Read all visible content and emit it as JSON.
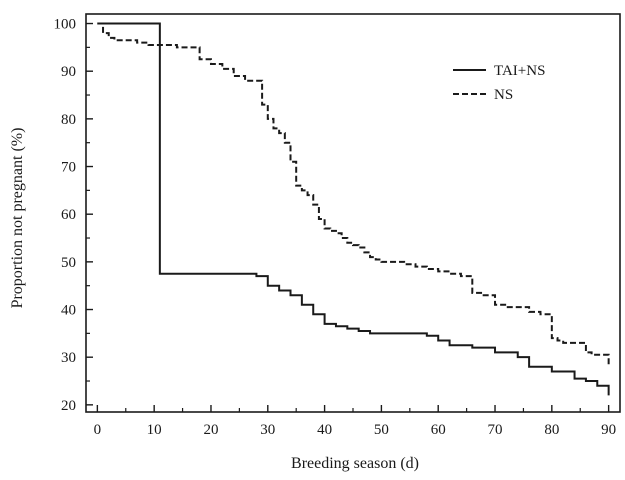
{
  "chart_data": {
    "type": "line",
    "title": "",
    "xlabel": "Breeding season (d)",
    "ylabel": "Proportion not pregnant (%)",
    "xlim": [
      -2,
      92
    ],
    "ylim": [
      18.5,
      102
    ],
    "xticks": [
      0,
      10,
      20,
      30,
      40,
      50,
      60,
      70,
      80,
      90
    ],
    "yticks": [
      20,
      30,
      40,
      50,
      60,
      70,
      80,
      90,
      100
    ],
    "legend_position": "top-right",
    "grid": false,
    "step_lines": true,
    "series": [
      {
        "name": "TAI+NS",
        "style": "solid",
        "color": "#1a1a1a",
        "x": [
          0,
          11,
          27,
          28,
          30,
          32,
          34,
          36,
          38,
          40,
          42,
          44,
          46,
          48,
          56,
          58,
          60,
          62,
          66,
          70,
          74,
          76,
          80,
          84,
          86,
          88,
          90
        ],
        "y": [
          100,
          47.5,
          47.5,
          47,
          45,
          44,
          43,
          41,
          39,
          37,
          36.5,
          36,
          35.5,
          35,
          35,
          34.5,
          33.5,
          32.5,
          32,
          31,
          30,
          28,
          27,
          25.5,
          25,
          24,
          22
        ]
      },
      {
        "name": "NS",
        "style": "dashed",
        "color": "#1a1a1a",
        "x": [
          0,
          1,
          2,
          3,
          7,
          9,
          14,
          18,
          20,
          22,
          24,
          26,
          29,
          30,
          31,
          32,
          33,
          34,
          35,
          36,
          37,
          38,
          39,
          40,
          41,
          42,
          43,
          44,
          45,
          46,
          47,
          48,
          49,
          50,
          54,
          56,
          58,
          60,
          62,
          64,
          66,
          68,
          70,
          72,
          76,
          78,
          80,
          81,
          82,
          86,
          87,
          90
        ],
        "y": [
          100,
          98,
          97,
          96.5,
          96,
          95.5,
          95,
          92.5,
          91.5,
          90.5,
          89,
          88,
          83,
          80,
          78,
          77,
          75,
          71,
          66,
          65,
          64,
          62,
          59,
          57,
          56.5,
          56,
          55,
          54,
          53.5,
          53,
          52,
          51,
          50.5,
          50,
          49.5,
          49,
          48.5,
          48,
          47.5,
          47,
          43.5,
          43,
          41,
          40.5,
          39.5,
          39,
          34,
          33.5,
          33,
          31,
          30.5,
          28
        ]
      }
    ]
  }
}
